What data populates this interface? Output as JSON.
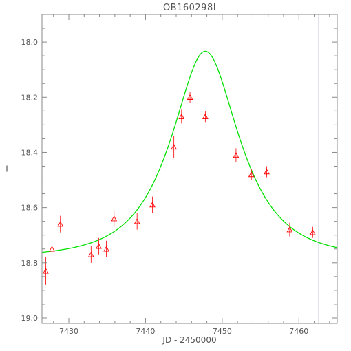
{
  "chart_data": {
    "type": "scatter",
    "title": "OB160298I",
    "xlabel": "JD - 2450000",
    "ylabel": "I",
    "xlim": [
      7426.5,
      7465
    ],
    "ylim": [
      19.02,
      17.9
    ],
    "y_inverted": true,
    "grid": false,
    "legend": "none",
    "xticks": [
      7430,
      7440,
      7450,
      7460
    ],
    "yticks": [
      18.0,
      18.2,
      18.4,
      18.6,
      18.8,
      19.0
    ],
    "ytick_labels": [
      "18.0",
      "18.2",
      "18.4",
      "18.6",
      "18.8",
      "19.0"
    ],
    "vertical_line_x": 7462.6,
    "series": [
      {
        "kind": "points",
        "color": "#ff0000",
        "marker": "triangle",
        "points": [
          {
            "x": 7427.0,
            "y": 18.83,
            "err": 0.05
          },
          {
            "x": 7427.8,
            "y": 18.75,
            "err": 0.04
          },
          {
            "x": 7428.9,
            "y": 18.66,
            "err": 0.03
          },
          {
            "x": 7432.9,
            "y": 18.77,
            "err": 0.03
          },
          {
            "x": 7433.9,
            "y": 18.74,
            "err": 0.03
          },
          {
            "x": 7434.9,
            "y": 18.75,
            "err": 0.03
          },
          {
            "x": 7435.9,
            "y": 18.64,
            "err": 0.03
          },
          {
            "x": 7438.9,
            "y": 18.65,
            "err": 0.03
          },
          {
            "x": 7440.9,
            "y": 18.59,
            "err": 0.03
          },
          {
            "x": 7443.7,
            "y": 18.38,
            "err": 0.04
          },
          {
            "x": 7444.7,
            "y": 18.27,
            "err": 0.025
          },
          {
            "x": 7445.8,
            "y": 18.2,
            "err": 0.02
          },
          {
            "x": 7447.8,
            "y": 18.27,
            "err": 0.02
          },
          {
            "x": 7451.8,
            "y": 18.41,
            "err": 0.025
          },
          {
            "x": 7453.8,
            "y": 18.48,
            "err": 0.02
          },
          {
            "x": 7455.8,
            "y": 18.47,
            "err": 0.02
          },
          {
            "x": 7458.8,
            "y": 18.68,
            "err": 0.025
          },
          {
            "x": 7461.8,
            "y": 18.69,
            "err": 0.02
          }
        ]
      },
      {
        "kind": "model-curve",
        "color": "#00e000",
        "function": "microlensing-pspl",
        "t0": 7447.8,
        "tE": 7.2,
        "u0": 0.56,
        "baseline_mag": 18.78
      }
    ]
  }
}
